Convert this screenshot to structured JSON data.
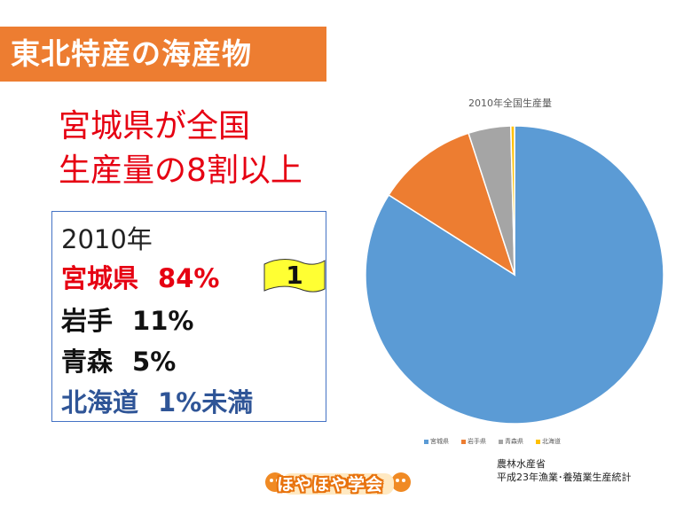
{
  "slide": {
    "title": "東北特産の海産物",
    "headline_line1": "宮城県が全国",
    "headline_line2": "生産量の8割以上"
  },
  "info": {
    "year": "2010年",
    "rows": [
      {
        "name": "宮城県",
        "pct": "84%"
      },
      {
        "name": "岩手",
        "pct": "11%"
      },
      {
        "name": "青森",
        "pct": "5%"
      },
      {
        "name": "北海道",
        "pct": "1%未満"
      }
    ],
    "rank": "1"
  },
  "chart_data": {
    "type": "pie",
    "title": "2010年全国生産量",
    "categories": [
      "宮城県",
      "岩手県",
      "青森県",
      "北海道"
    ],
    "values": [
      84,
      11,
      4.6,
      0.4
    ],
    "colors": [
      "#5B9BD5",
      "#ED7D31",
      "#A5A5A5",
      "#FFC000"
    ],
    "legend_position": "bottom"
  },
  "source": {
    "line1": "農林水産省",
    "line2": "平成23年漁業･養殖業生産統計"
  },
  "logo": {
    "text": "ほやほや学会"
  }
}
